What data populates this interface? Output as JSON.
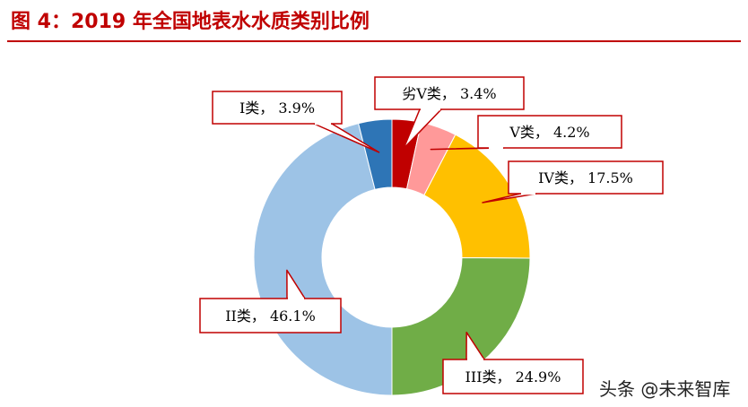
{
  "header": {
    "title": "图 4：2019 年全国地表水水质类别比例"
  },
  "chart_data": {
    "type": "pie",
    "variant": "donut",
    "legend": "none",
    "categories": [
      "劣V类",
      "V类",
      "IV类",
      "III类",
      "II类",
      "I类"
    ],
    "values": [
      3.4,
      4.2,
      17.5,
      24.9,
      46.1,
      3.9
    ],
    "labels": [
      "劣V类， 3.4%",
      "V类， 4.2%",
      "IV类， 17.5%",
      "III类， 24.9%",
      "II类， 46.1%",
      "I类， 3.9%"
    ],
    "colors": [
      "#c00000",
      "#ff9999",
      "#ffc000",
      "#70ad47",
      "#9dc3e6",
      "#2e75b6"
    ],
    "callout_border_color": "#c00000"
  },
  "watermark": "头条 @未来智库"
}
